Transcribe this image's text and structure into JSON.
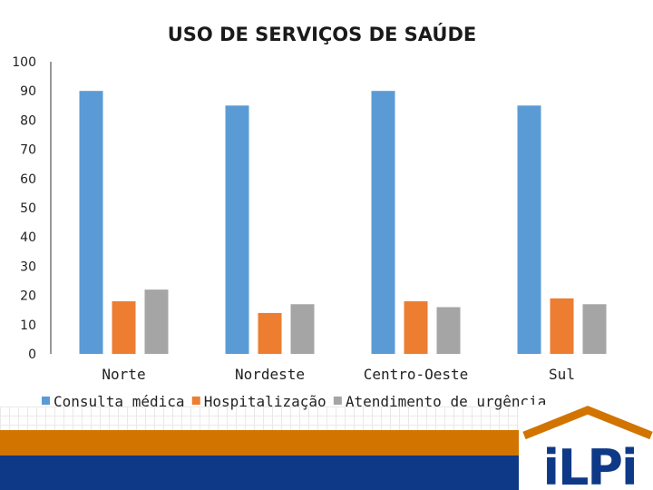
{
  "chart_data": {
    "type": "bar",
    "title": "USO DE SERVIÇOS DE SAÚDE",
    "categories": [
      "Norte",
      "Nordeste",
      "Centro-Oeste",
      "Sul"
    ],
    "series": [
      {
        "name": "Consulta médica",
        "color": "#5b9bd5",
        "values": [
          90,
          85,
          90,
          85
        ]
      },
      {
        "name": "Hospitalização",
        "color": "#ed7d31",
        "values": [
          18,
          14,
          18,
          19
        ]
      },
      {
        "name": "Atendimento de urgência",
        "color": "#a5a5a5",
        "values": [
          22,
          17,
          16,
          17
        ]
      }
    ],
    "ylim": [
      0,
      100
    ],
    "yticks": [
      0,
      10,
      20,
      30,
      40,
      50,
      60,
      70,
      80,
      90,
      100
    ],
    "xlabel": "",
    "ylabel": "",
    "legend": "bottom",
    "grid": false
  },
  "logo": {
    "text": "iLPi",
    "roof_color": "#d17400",
    "text_color": "#0e3987"
  }
}
